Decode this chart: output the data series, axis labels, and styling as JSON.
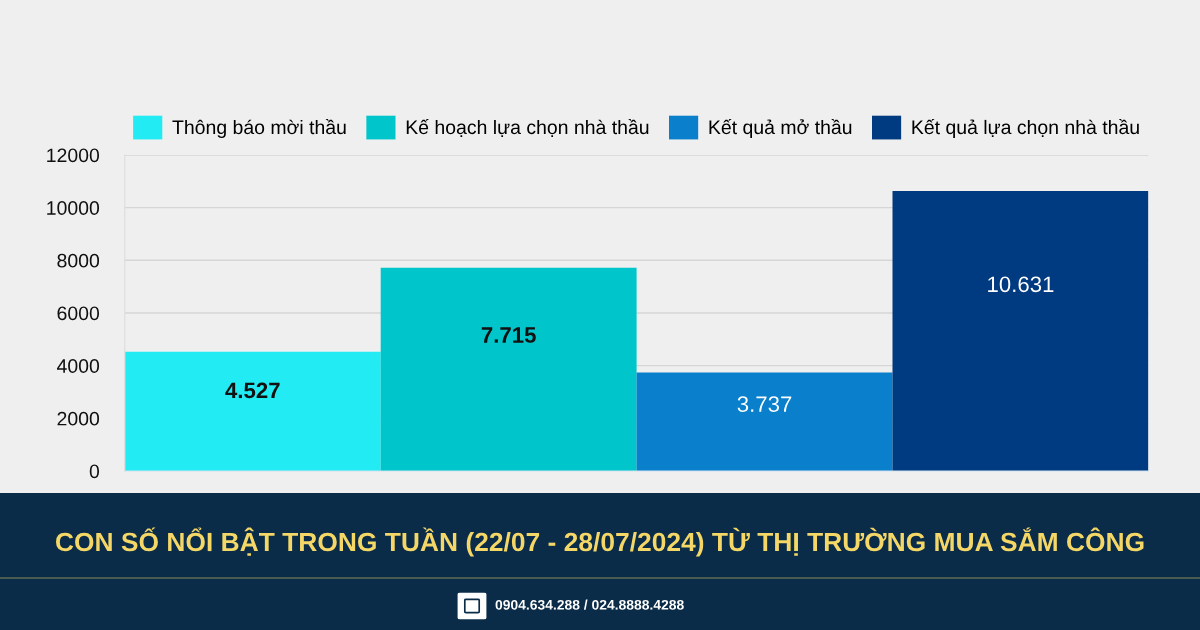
{
  "chart_data": {
    "type": "bar",
    "title": "CON SỐ NỔI BẬT TRONG TUẦN (22/07 - 28/07/2024) TỪ THỊ TRƯỜNG MUA SẮM CÔNG",
    "annotations": [
      "0904.634.288 / 024.8888.4288"
    ],
    "categories": [
      null
    ],
    "series": [
      {
        "name": "Thông báo mời thầu",
        "color": "#22ebf3",
        "values": [
          4527
        ],
        "value_labels": [
          "4.527"
        ]
      },
      {
        "name": "Kế hoạch lựa chọn nhà thầu",
        "color": "#00c6cc",
        "values": [
          7715
        ],
        "value_labels": [
          "7.715"
        ]
      },
      {
        "name": "Kết quả mở thầu",
        "color": "#0a7fcc",
        "values": [
          3737
        ],
        "value_labels": [
          "3.737"
        ]
      },
      {
        "name": "Kết quả lựa chọn nhà thầu",
        "color": "#003a80",
        "values": [
          10631
        ],
        "value_labels": [
          "10.631"
        ]
      }
    ],
    "ylim": [
      0,
      12000
    ],
    "yticks": [
      0,
      2000,
      4000,
      6000,
      8000,
      10000,
      12000
    ],
    "grid": "y",
    "legend": "top"
  }
}
